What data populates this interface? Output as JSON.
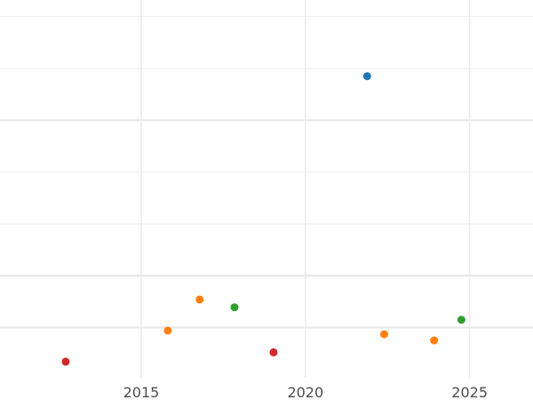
{
  "chart_data": {
    "type": "scatter",
    "title": "",
    "xlabel": "",
    "ylabel": "",
    "xlim": [
      2010.7,
      2026.93
    ],
    "ylim": [
      -0.97,
      6.32
    ],
    "x_ticks": [
      2015,
      2020,
      2025
    ],
    "x_tick_labels": [
      "2015",
      "2020",
      "2025"
    ],
    "y_gridlines": [
      0,
      1,
      2,
      3,
      4,
      5,
      6
    ],
    "y_major_gridlines": [
      0,
      1,
      4
    ],
    "y_tick_labels_shown": false,
    "grid": true,
    "legend": "none",
    "series": [
      {
        "color": "#1f77b4",
        "points": [
          {
            "x": 2021.88,
            "y": 4.85
          }
        ]
      },
      {
        "color": "#ff7f0e",
        "points": [
          {
            "x": 2015.81,
            "y": -0.06
          },
          {
            "x": 2016.78,
            "y": 0.54
          },
          {
            "x": 2022.4,
            "y": -0.13
          },
          {
            "x": 2023.92,
            "y": -0.25
          }
        ]
      },
      {
        "color": "#2ca02c",
        "points": [
          {
            "x": 2017.84,
            "y": 0.39
          },
          {
            "x": 2024.75,
            "y": 0.15
          }
        ]
      },
      {
        "color": "#d62728",
        "points": [
          {
            "x": 2012.7,
            "y": -0.66
          },
          {
            "x": 2019.03,
            "y": -0.48
          }
        ]
      }
    ]
  }
}
